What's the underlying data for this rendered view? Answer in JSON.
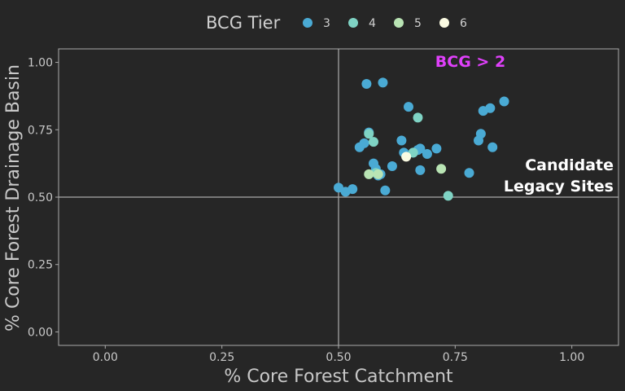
{
  "chart_data": {
    "type": "scatter",
    "xlabel": "% Core Forest Catchment",
    "ylabel": "% Core Forest Drainage Basin",
    "xlim": [
      -0.1,
      1.1
    ],
    "ylim": [
      -0.05,
      1.05
    ],
    "x_ticks": [
      "0.00",
      "0.25",
      "0.50",
      "0.75",
      "1.00"
    ],
    "x_tick_values": [
      0,
      0.25,
      0.5,
      0.75,
      1.0
    ],
    "y_ticks": [
      "0.00",
      "0.25",
      "0.50",
      "0.75",
      "1.00"
    ],
    "y_tick_values": [
      0,
      0.25,
      0.5,
      0.75,
      1.0
    ],
    "reference_lines": {
      "x": 0.5,
      "y": 0.5
    },
    "grid": false,
    "legend": {
      "title": "BCG Tier",
      "placement": "top",
      "entries": [
        {
          "label": "3",
          "color": "#4aaad4"
        },
        {
          "label": "4",
          "color": "#7fd3c4"
        },
        {
          "label": "5",
          "color": "#b9e4b4"
        },
        {
          "label": "6",
          "color": "#fbfbe2"
        }
      ]
    },
    "annotations": [
      {
        "text": "BCG > 2",
        "color": "#e040fb"
      },
      {
        "text": "Candidate",
        "color": "#ffffff"
      },
      {
        "text": "Legacy Sites",
        "color": "#ffffff"
      }
    ],
    "series": [
      {
        "name": "3",
        "color": "#4aaad4",
        "x": [
          0.5,
          0.515,
          0.53,
          0.56,
          0.595,
          0.545,
          0.555,
          0.565,
          0.575,
          0.58,
          0.585,
          0.59,
          0.6,
          0.615,
          0.635,
          0.64,
          0.65,
          0.66,
          0.67,
          0.675,
          0.675,
          0.69,
          0.71,
          0.78,
          0.8,
          0.805,
          0.81,
          0.825,
          0.83,
          0.855
        ],
        "y": [
          0.535,
          0.52,
          0.53,
          0.92,
          0.925,
          0.685,
          0.7,
          0.74,
          0.625,
          0.605,
          0.58,
          0.585,
          0.525,
          0.615,
          0.71,
          0.665,
          0.835,
          0.665,
          0.675,
          0.68,
          0.6,
          0.66,
          0.68,
          0.59,
          0.71,
          0.735,
          0.82,
          0.83,
          0.685,
          0.855
        ]
      },
      {
        "name": "4",
        "color": "#7fd3c4",
        "x": [
          0.565,
          0.575,
          0.58,
          0.66,
          0.67,
          0.735
        ],
        "y": [
          0.735,
          0.705,
          0.59,
          0.665,
          0.795,
          0.505
        ]
      },
      {
        "name": "5",
        "color": "#b9e4b4",
        "x": [
          0.565,
          0.585,
          0.72
        ],
        "y": [
          0.585,
          0.585,
          0.605
        ]
      },
      {
        "name": "6",
        "color": "#fbfbe2",
        "x": [
          0.645
        ],
        "y": [
          0.65
        ]
      }
    ]
  }
}
